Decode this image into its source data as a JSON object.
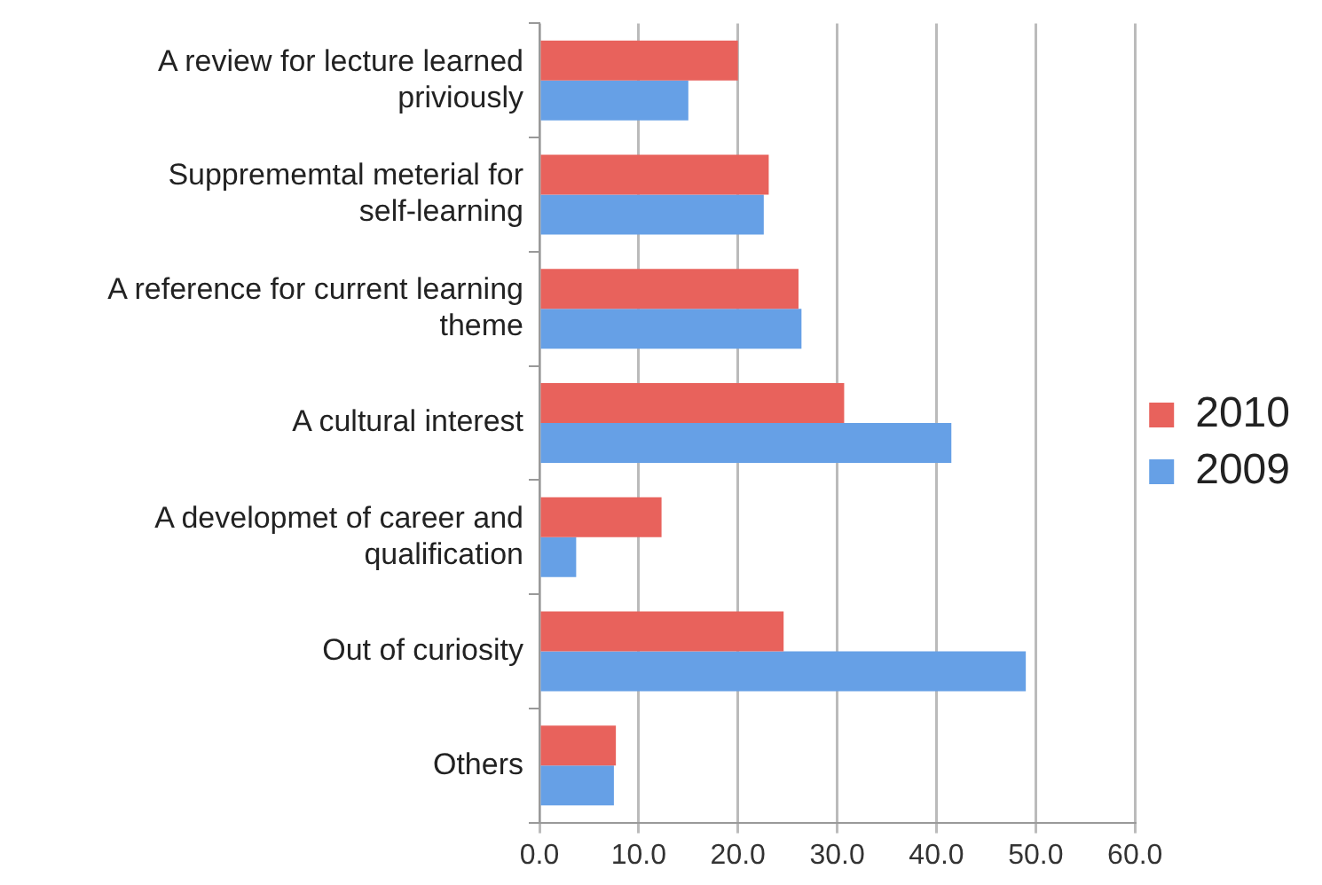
{
  "chart_data": {
    "type": "bar",
    "orientation": "horizontal",
    "categories": [
      "A review for lecture learned priviously",
      "Supprememtal meterial for self-learning",
      "A reference for current learning theme",
      "A cultural interest",
      "A developmet of career and qualification",
      "Out of curiosity",
      "Others"
    ],
    "series": [
      {
        "name": "2010",
        "color": "#e8625c",
        "values": [
          20.0,
          23.1,
          26.1,
          30.7,
          12.3,
          24.6,
          7.7
        ]
      },
      {
        "name": "2009",
        "color": "#66a0e6",
        "values": [
          15.0,
          22.6,
          26.4,
          41.5,
          3.7,
          49.0,
          7.5
        ]
      }
    ],
    "xlim": [
      0,
      60
    ],
    "xticks": [
      {
        "value": 0,
        "label": "0.0"
      },
      {
        "value": 10,
        "label": "10.0"
      },
      {
        "value": 20,
        "label": "20.0"
      },
      {
        "value": 30,
        "label": "30.0"
      },
      {
        "value": 40,
        "label": "40.0"
      },
      {
        "value": 50,
        "label": "50.0"
      },
      {
        "value": 60,
        "label": "60.0"
      }
    ],
    "grid": "x",
    "legend": "right"
  }
}
